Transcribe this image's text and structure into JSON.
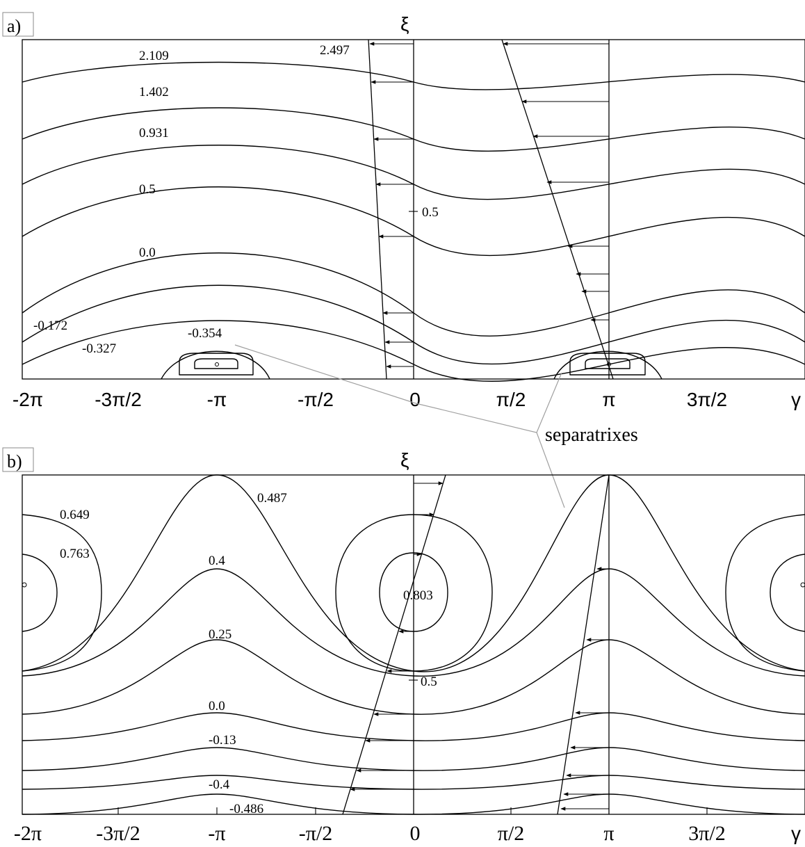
{
  "panels": [
    {
      "label": "a)",
      "y_axis": "ξ",
      "x_axis": "γ",
      "y_tick_label": "0.5",
      "x_ticks": [
        "-2π",
        "-3π/2",
        "-π",
        "-π/2",
        "0",
        "π/2",
        "π",
        "3π/2"
      ],
      "level_labels": [
        "2.497",
        "2.109",
        "1.402",
        "0.931",
        "0.5",
        "0.0",
        "-0.172",
        "-0.327",
        "-0.354"
      ]
    },
    {
      "label": "b)",
      "y_axis": "ξ",
      "x_axis": "γ",
      "y_tick_label": "0.5",
      "x_ticks": [
        "-2π",
        "-3π/2",
        "-π",
        "-π/2",
        "0",
        "π/2",
        "π",
        "3π/2"
      ],
      "level_labels": [
        "0.649",
        "0.763",
        "0.487",
        "0.4",
        "0.25",
        "0.0",
        "-0.13",
        "-0.4",
        "-0.486",
        "0.803"
      ]
    }
  ],
  "annotation": "separatrixes"
}
